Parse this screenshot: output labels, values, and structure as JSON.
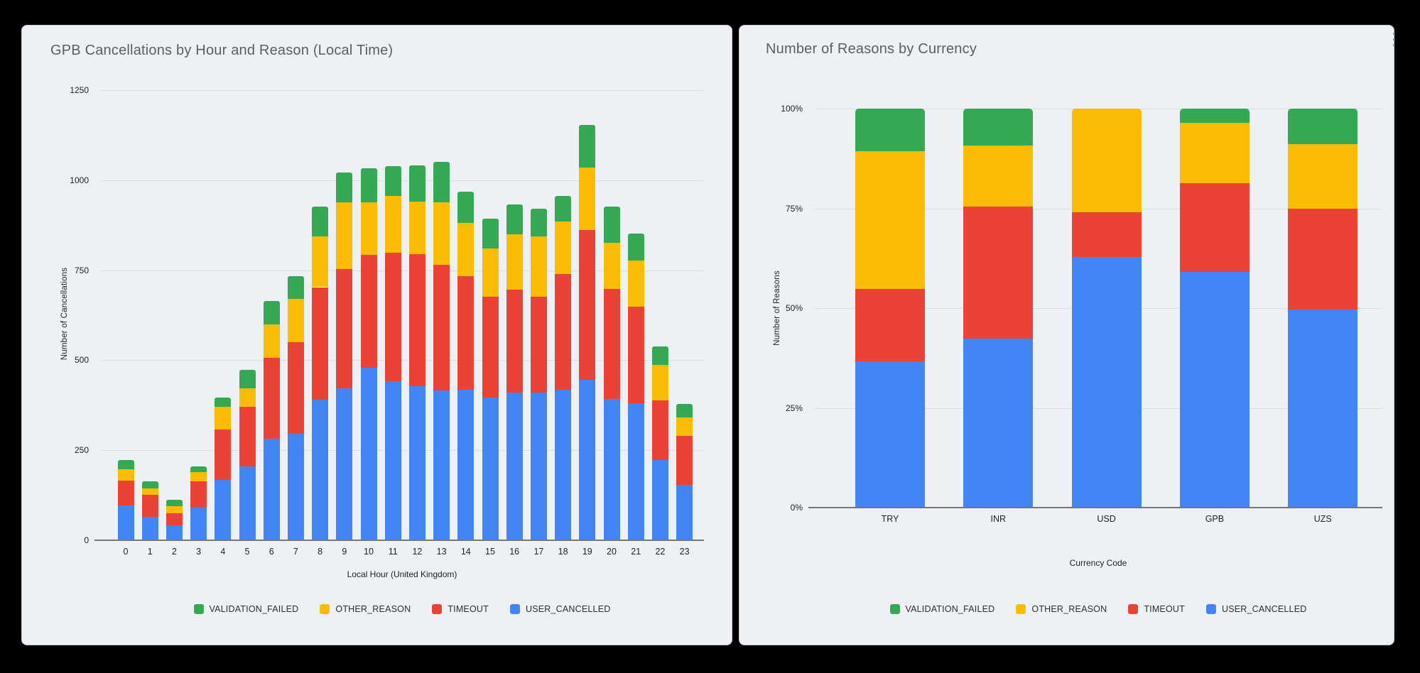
{
  "page": {
    "background_color": "#000000",
    "card_color": "#edf1f6",
    "icons": {
      "chart_menu": "kebab-menu-icon"
    }
  },
  "palette": {
    "blue": "#4285F4",
    "red": "#EA4335",
    "yellow": "#FBBC04",
    "green": "#34A853"
  },
  "chart_data": [
    {
      "type": "bar",
      "stacked": true,
      "grid": true,
      "legend_position": "bottom",
      "title": "GPB Cancellations by Hour and Reason (Local Time)",
      "xlabel": "Local Hour (United Kingdom)",
      "ylabel": "Number of Cancellations",
      "ylim": [
        0,
        1250
      ],
      "yticks": [
        0,
        250,
        500,
        750,
        1000,
        1250
      ],
      "ytick_suffix": "",
      "categories": [
        "0",
        "1",
        "2",
        "3",
        "4",
        "5",
        "6",
        "7",
        "8",
        "9",
        "10",
        "11",
        "12",
        "13",
        "14",
        "15",
        "16",
        "17",
        "18",
        "19",
        "20",
        "21",
        "22",
        "23"
      ],
      "series": [
        {
          "name": "USER_CANCELLED",
          "color": "#4285F4",
          "values": [
            96,
            65,
            41,
            91,
            168,
            205,
            282,
            296,
            391,
            422,
            480,
            442,
            428,
            417,
            419,
            397,
            411,
            411,
            419,
            446,
            393,
            381,
            223,
            154
          ]
        },
        {
          "name": "TIMEOUT",
          "color": "#EA4335",
          "values": [
            69,
            61,
            35,
            73,
            140,
            166,
            225,
            255,
            312,
            332,
            312,
            356,
            367,
            349,
            315,
            280,
            286,
            266,
            321,
            415,
            306,
            267,
            166,
            136
          ]
        },
        {
          "name": "OTHER_REASON",
          "color": "#FBBC04",
          "values": [
            33,
            18,
            18,
            26,
            63,
            51,
            93,
            120,
            140,
            184,
            146,
            159,
            145,
            172,
            147,
            134,
            152,
            166,
            146,
            175,
            128,
            128,
            99,
            52
          ]
        },
        {
          "name": "VALIDATION_FAILED",
          "color": "#34A853",
          "values": [
            24,
            20,
            18,
            16,
            26,
            52,
            65,
            63,
            83,
            83,
            96,
            83,
            102,
            112,
            88,
            83,
            83,
            77,
            71,
            117,
            99,
            75,
            51,
            37
          ]
        }
      ],
      "totals": [
        222,
        164,
        112,
        206,
        397,
        474,
        665,
        734,
        926,
        1021,
        1034,
        1040,
        1042,
        1050,
        969,
        894,
        932,
        920,
        957,
        1153,
        926,
        851,
        539,
        379
      ],
      "legend_order": [
        "VALIDATION_FAILED",
        "OTHER_REASON",
        "TIMEOUT",
        "USER_CANCELLED"
      ]
    },
    {
      "type": "bar",
      "stacked": true,
      "percent": true,
      "grid": true,
      "legend_position": "bottom",
      "title": "Number of Reasons by Currency",
      "xlabel": "Currency Code",
      "ylabel": "Number of Reasons",
      "ylim": [
        0,
        100
      ],
      "yticks": [
        0,
        25,
        50,
        75,
        100
      ],
      "ytick_suffix": "%",
      "categories": [
        "TRY",
        "INR",
        "USD",
        "GPB",
        "UZS"
      ],
      "series": [
        {
          "name": "USER_CANCELLED",
          "color": "#4285F4",
          "values": [
            36.6,
            42.3,
            62.9,
            59.0,
            49.7
          ]
        },
        {
          "name": "TIMEOUT",
          "color": "#EA4335",
          "values": [
            18.2,
            33.1,
            11.1,
            22.4,
            25.2
          ]
        },
        {
          "name": "OTHER_REASON",
          "color": "#FBBC04",
          "values": [
            34.6,
            15.3,
            26.0,
            15.1,
            16.3
          ]
        },
        {
          "name": "VALIDATION_FAILED",
          "color": "#34A853",
          "values": [
            10.6,
            9.3,
            0,
            3.5,
            8.8
          ]
        }
      ],
      "legend_order": [
        "VALIDATION_FAILED",
        "OTHER_REASON",
        "TIMEOUT",
        "USER_CANCELLED"
      ]
    }
  ]
}
